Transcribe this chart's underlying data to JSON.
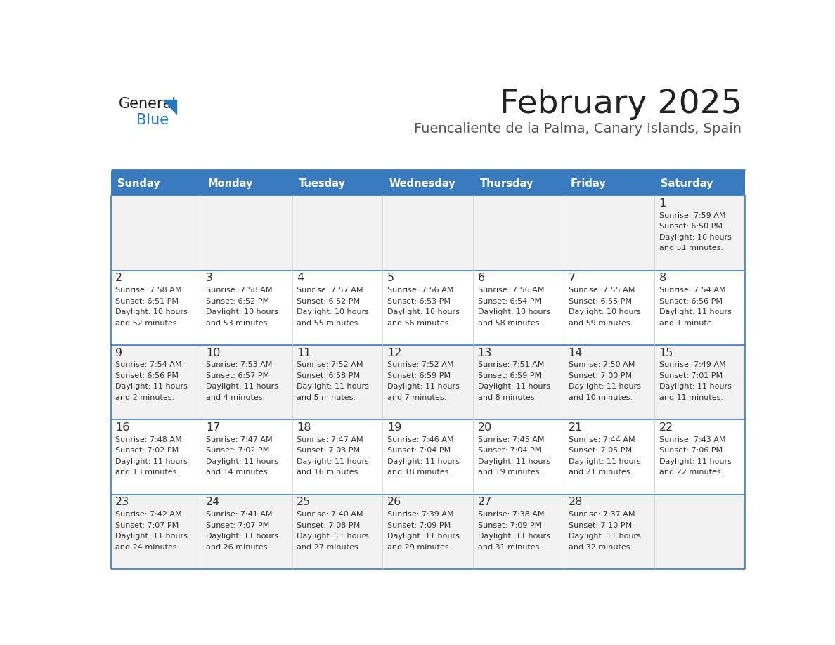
{
  "title": "February 2025",
  "subtitle": "Fuencaliente de la Palma, Canary Islands, Spain",
  "header_bg": "#3a7bbf",
  "header_text": "#ffffff",
  "row_bg_odd": "#f2f2f2",
  "row_bg_even": "#ffffff",
  "cell_text": "#333333",
  "divider_color": "#3a7bbf",
  "days_of_week": [
    "Sunday",
    "Monday",
    "Tuesday",
    "Wednesday",
    "Thursday",
    "Friday",
    "Saturday"
  ],
  "logo_general_color": "#1a1a1a",
  "logo_blue_color": "#2878be",
  "calendar": [
    [
      {
        "day": "",
        "info": ""
      },
      {
        "day": "",
        "info": ""
      },
      {
        "day": "",
        "info": ""
      },
      {
        "day": "",
        "info": ""
      },
      {
        "day": "",
        "info": ""
      },
      {
        "day": "",
        "info": ""
      },
      {
        "day": "1",
        "info": "Sunrise: 7:59 AM\nSunset: 6:50 PM\nDaylight: 10 hours\nand 51 minutes."
      }
    ],
    [
      {
        "day": "2",
        "info": "Sunrise: 7:58 AM\nSunset: 6:51 PM\nDaylight: 10 hours\nand 52 minutes."
      },
      {
        "day": "3",
        "info": "Sunrise: 7:58 AM\nSunset: 6:52 PM\nDaylight: 10 hours\nand 53 minutes."
      },
      {
        "day": "4",
        "info": "Sunrise: 7:57 AM\nSunset: 6:52 PM\nDaylight: 10 hours\nand 55 minutes."
      },
      {
        "day": "5",
        "info": "Sunrise: 7:56 AM\nSunset: 6:53 PM\nDaylight: 10 hours\nand 56 minutes."
      },
      {
        "day": "6",
        "info": "Sunrise: 7:56 AM\nSunset: 6:54 PM\nDaylight: 10 hours\nand 58 minutes."
      },
      {
        "day": "7",
        "info": "Sunrise: 7:55 AM\nSunset: 6:55 PM\nDaylight: 10 hours\nand 59 minutes."
      },
      {
        "day": "8",
        "info": "Sunrise: 7:54 AM\nSunset: 6:56 PM\nDaylight: 11 hours\nand 1 minute."
      }
    ],
    [
      {
        "day": "9",
        "info": "Sunrise: 7:54 AM\nSunset: 6:56 PM\nDaylight: 11 hours\nand 2 minutes."
      },
      {
        "day": "10",
        "info": "Sunrise: 7:53 AM\nSunset: 6:57 PM\nDaylight: 11 hours\nand 4 minutes."
      },
      {
        "day": "11",
        "info": "Sunrise: 7:52 AM\nSunset: 6:58 PM\nDaylight: 11 hours\nand 5 minutes."
      },
      {
        "day": "12",
        "info": "Sunrise: 7:52 AM\nSunset: 6:59 PM\nDaylight: 11 hours\nand 7 minutes."
      },
      {
        "day": "13",
        "info": "Sunrise: 7:51 AM\nSunset: 6:59 PM\nDaylight: 11 hours\nand 8 minutes."
      },
      {
        "day": "14",
        "info": "Sunrise: 7:50 AM\nSunset: 7:00 PM\nDaylight: 11 hours\nand 10 minutes."
      },
      {
        "day": "15",
        "info": "Sunrise: 7:49 AM\nSunset: 7:01 PM\nDaylight: 11 hours\nand 11 minutes."
      }
    ],
    [
      {
        "day": "16",
        "info": "Sunrise: 7:48 AM\nSunset: 7:02 PM\nDaylight: 11 hours\nand 13 minutes."
      },
      {
        "day": "17",
        "info": "Sunrise: 7:47 AM\nSunset: 7:02 PM\nDaylight: 11 hours\nand 14 minutes."
      },
      {
        "day": "18",
        "info": "Sunrise: 7:47 AM\nSunset: 7:03 PM\nDaylight: 11 hours\nand 16 minutes."
      },
      {
        "day": "19",
        "info": "Sunrise: 7:46 AM\nSunset: 7:04 PM\nDaylight: 11 hours\nand 18 minutes."
      },
      {
        "day": "20",
        "info": "Sunrise: 7:45 AM\nSunset: 7:04 PM\nDaylight: 11 hours\nand 19 minutes."
      },
      {
        "day": "21",
        "info": "Sunrise: 7:44 AM\nSunset: 7:05 PM\nDaylight: 11 hours\nand 21 minutes."
      },
      {
        "day": "22",
        "info": "Sunrise: 7:43 AM\nSunset: 7:06 PM\nDaylight: 11 hours\nand 22 minutes."
      }
    ],
    [
      {
        "day": "23",
        "info": "Sunrise: 7:42 AM\nSunset: 7:07 PM\nDaylight: 11 hours\nand 24 minutes."
      },
      {
        "day": "24",
        "info": "Sunrise: 7:41 AM\nSunset: 7:07 PM\nDaylight: 11 hours\nand 26 minutes."
      },
      {
        "day": "25",
        "info": "Sunrise: 7:40 AM\nSunset: 7:08 PM\nDaylight: 11 hours\nand 27 minutes."
      },
      {
        "day": "26",
        "info": "Sunrise: 7:39 AM\nSunset: 7:09 PM\nDaylight: 11 hours\nand 29 minutes."
      },
      {
        "day": "27",
        "info": "Sunrise: 7:38 AM\nSunset: 7:09 PM\nDaylight: 11 hours\nand 31 minutes."
      },
      {
        "day": "28",
        "info": "Sunrise: 7:37 AM\nSunset: 7:10 PM\nDaylight: 11 hours\nand 32 minutes."
      },
      {
        "day": "",
        "info": ""
      }
    ]
  ]
}
